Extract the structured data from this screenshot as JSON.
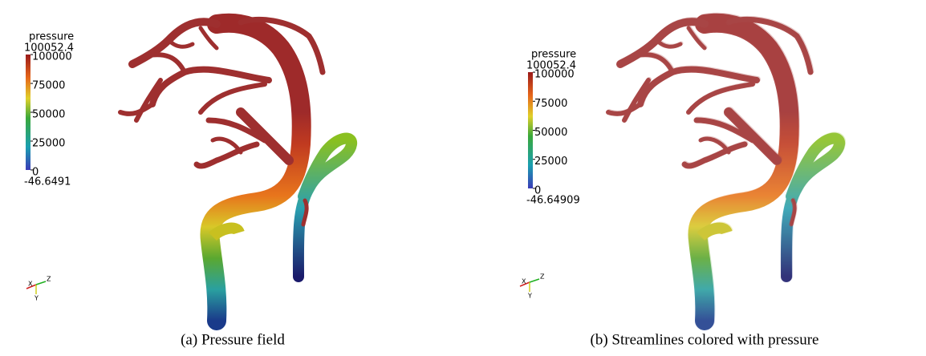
{
  "panels": [
    {
      "caption": "(a) Pressure field",
      "colorbar": {
        "title": "pressure",
        "max": 100052.4,
        "min": -46.6491,
        "ticks": [
          100000,
          75000,
          50000,
          25000,
          0
        ]
      },
      "axes": [
        "X",
        "Y",
        "Z"
      ]
    },
    {
      "caption": "(b) Streamlines colored with pressure",
      "colorbar": {
        "title": "pressure",
        "max": 100052.4,
        "min": -46.64909,
        "ticks": [
          100000,
          75000,
          50000,
          25000,
          0
        ]
      },
      "axes": [
        "X",
        "Y",
        "Z"
      ]
    }
  ]
}
